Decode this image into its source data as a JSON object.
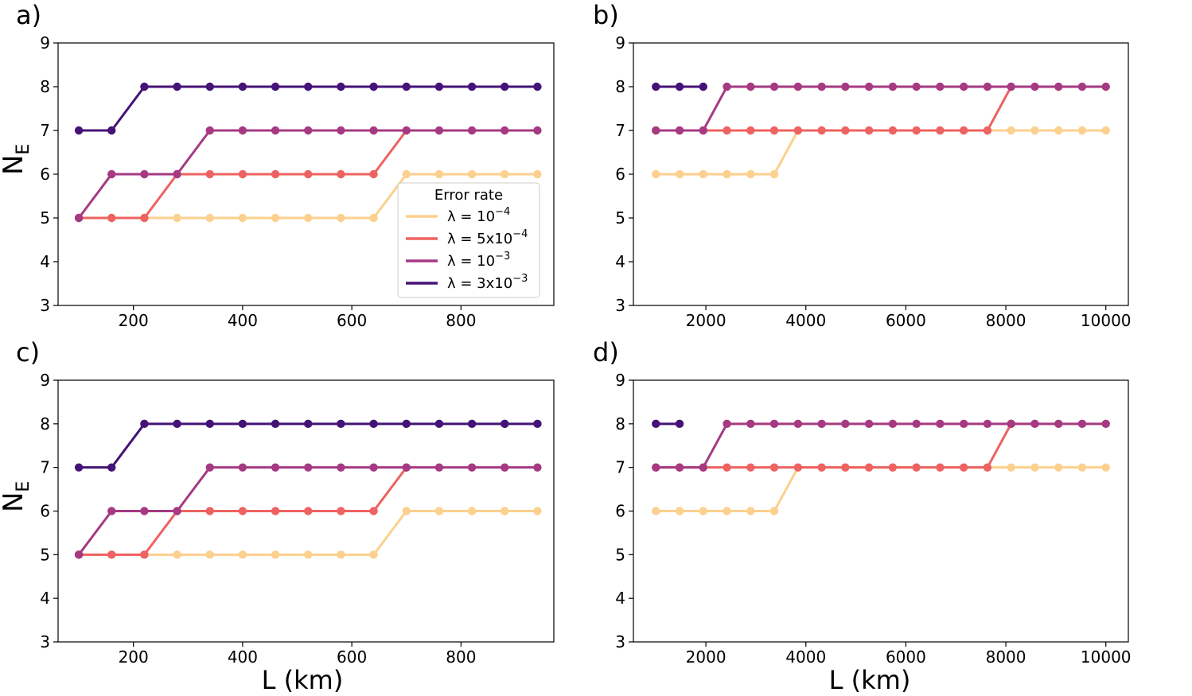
{
  "figure": {
    "ylabel_main": "N",
    "ylabel_sub": "E",
    "xlabel": "L (km)",
    "legend": {
      "title": "Error rate",
      "entries": [
        {
          "prefix": "λ = 10",
          "exp": "−4"
        },
        {
          "prefix": "λ = 5x10",
          "exp": "−4"
        },
        {
          "prefix": "λ = 10",
          "exp": "−3"
        },
        {
          "prefix": "λ = 3x10",
          "exp": "−3"
        }
      ]
    }
  },
  "colors": {
    "l1e4": "#fcd08e",
    "l5e4": "#ee6261",
    "l1e3": "#a63a82",
    "l3e3": "#451377"
  },
  "chart_data": [
    {
      "label": "a)",
      "type": "line",
      "xlim": [
        62,
        970
      ],
      "ylim": [
        3,
        9
      ],
      "xticks": [
        200,
        400,
        600,
        800
      ],
      "yticks": [
        3,
        4,
        5,
        6,
        7,
        8,
        9
      ],
      "series": [
        {
          "name": "λ = 10^-4",
          "color": "#fcd08e",
          "x": [
            100,
            160,
            220,
            280,
            340,
            400,
            460,
            520,
            580,
            640,
            700,
            760,
            820,
            880,
            940
          ],
          "y": [
            5,
            5,
            5,
            5,
            5,
            5,
            5,
            5,
            5,
            5,
            6,
            6,
            6,
            6,
            6
          ]
        },
        {
          "name": "λ = 5x10^-4",
          "color": "#ee6261",
          "x": [
            100,
            160,
            220,
            280,
            340,
            400,
            460,
            520,
            580,
            640,
            700
          ],
          "y": [
            5,
            5,
            5,
            6,
            6,
            6,
            6,
            6,
            6,
            6,
            7
          ]
        },
        {
          "name": "λ = 10^-3",
          "color": "#a63a82",
          "x": [
            100,
            160,
            220,
            280,
            340,
            400,
            460,
            520,
            580,
            640,
            700,
            760,
            820,
            880,
            940
          ],
          "y": [
            5,
            6,
            6,
            6,
            7,
            7,
            7,
            7,
            7,
            7,
            7,
            7,
            7,
            7,
            7
          ]
        },
        {
          "name": "λ = 3x10^-3",
          "color": "#451377",
          "x": [
            100,
            160,
            220,
            280,
            340,
            400,
            460,
            520,
            580,
            640,
            700,
            760,
            820,
            880,
            940
          ],
          "y": [
            7,
            7,
            8,
            8,
            8,
            8,
            8,
            8,
            8,
            8,
            8,
            8,
            8,
            8,
            8
          ]
        }
      ]
    },
    {
      "label": "b)",
      "type": "line",
      "xlim": [
        550,
        10450
      ],
      "ylim": [
        3,
        9
      ],
      "xticks": [
        2000,
        4000,
        6000,
        8000,
        10000
      ],
      "yticks": [
        3,
        4,
        5,
        6,
        7,
        8,
        9
      ],
      "series": [
        {
          "name": "λ = 10^-4",
          "color": "#fcd08e",
          "x": [
            1000,
            1474,
            1947,
            2421,
            2895,
            3368,
            3842,
            4316,
            4789,
            5263,
            5737,
            6211,
            6684,
            7158,
            7632,
            8105,
            8579,
            9053,
            9526,
            10000
          ],
          "y": [
            6,
            6,
            6,
            6,
            6,
            6,
            7,
            7,
            7,
            7,
            7,
            7,
            7,
            7,
            7,
            7,
            7,
            7,
            7,
            7
          ]
        },
        {
          "name": "λ = 5x10^-4",
          "color": "#ee6261",
          "x": [
            1000,
            1474,
            1947,
            2421,
            2895,
            3368,
            3842,
            4316,
            4789,
            5263,
            5737,
            6211,
            6684,
            7158,
            7632,
            8105
          ],
          "y": [
            7,
            7,
            7,
            7,
            7,
            7,
            7,
            7,
            7,
            7,
            7,
            7,
            7,
            7,
            7,
            8
          ]
        },
        {
          "name": "λ = 10^-3",
          "color": "#a63a82",
          "x": [
            1000,
            1474,
            1947,
            2421,
            2895,
            3368,
            3842,
            4316,
            4789,
            5263,
            5737,
            6211,
            6684,
            7158,
            7632,
            8105,
            8579,
            9053,
            9526,
            10000
          ],
          "y": [
            7,
            7,
            7,
            8,
            8,
            8,
            8,
            8,
            8,
            8,
            8,
            8,
            8,
            8,
            8,
            8,
            8,
            8,
            8,
            8
          ]
        },
        {
          "name": "λ = 3x10^-3",
          "color": "#451377",
          "x": [
            1000,
            1474,
            1947
          ],
          "y": [
            8,
            8,
            8
          ]
        }
      ]
    },
    {
      "label": "c)",
      "type": "line",
      "xlim": [
        62,
        970
      ],
      "ylim": [
        3,
        9
      ],
      "xticks": [
        200,
        400,
        600,
        800
      ],
      "yticks": [
        3,
        4,
        5,
        6,
        7,
        8,
        9
      ],
      "series": [
        {
          "name": "λ = 10^-4",
          "color": "#fcd08e",
          "x": [
            100,
            160,
            220,
            280,
            340,
            400,
            460,
            520,
            580,
            640,
            700,
            760,
            820,
            880,
            940
          ],
          "y": [
            5,
            5,
            5,
            5,
            5,
            5,
            5,
            5,
            5,
            5,
            6,
            6,
            6,
            6,
            6
          ]
        },
        {
          "name": "λ = 5x10^-4",
          "color": "#ee6261",
          "x": [
            100,
            160,
            220,
            280,
            340,
            400,
            460,
            520,
            580,
            640,
            700
          ],
          "y": [
            5,
            5,
            5,
            6,
            6,
            6,
            6,
            6,
            6,
            6,
            7
          ]
        },
        {
          "name": "λ = 10^-3",
          "color": "#a63a82",
          "x": [
            100,
            160,
            220,
            280,
            340,
            400,
            460,
            520,
            580,
            640,
            700,
            760,
            820,
            880,
            940
          ],
          "y": [
            5,
            6,
            6,
            6,
            7,
            7,
            7,
            7,
            7,
            7,
            7,
            7,
            7,
            7,
            7
          ]
        },
        {
          "name": "λ = 3x10^-3",
          "color": "#451377",
          "x": [
            100,
            160,
            220,
            280,
            340,
            400,
            460,
            520,
            580,
            640,
            700,
            760,
            820,
            880,
            940
          ],
          "y": [
            7,
            7,
            8,
            8,
            8,
            8,
            8,
            8,
            8,
            8,
            8,
            8,
            8,
            8,
            8
          ]
        }
      ]
    },
    {
      "label": "d)",
      "type": "line",
      "xlim": [
        550,
        10450
      ],
      "ylim": [
        3,
        9
      ],
      "xticks": [
        2000,
        4000,
        6000,
        8000,
        10000
      ],
      "yticks": [
        3,
        4,
        5,
        6,
        7,
        8,
        9
      ],
      "series": [
        {
          "name": "λ = 10^-4",
          "color": "#fcd08e",
          "x": [
            1000,
            1474,
            1947,
            2421,
            2895,
            3368,
            3842,
            4316,
            4789,
            5263,
            5737,
            6211,
            6684,
            7158,
            7632,
            8105,
            8579,
            9053,
            9526,
            10000
          ],
          "y": [
            6,
            6,
            6,
            6,
            6,
            6,
            7,
            7,
            7,
            7,
            7,
            7,
            7,
            7,
            7,
            7,
            7,
            7,
            7,
            7
          ]
        },
        {
          "name": "λ = 5x10^-4",
          "color": "#ee6261",
          "x": [
            1000,
            1474,
            1947,
            2421,
            2895,
            3368,
            3842,
            4316,
            4789,
            5263,
            5737,
            6211,
            6684,
            7158,
            7632,
            8105
          ],
          "y": [
            7,
            7,
            7,
            7,
            7,
            7,
            7,
            7,
            7,
            7,
            7,
            7,
            7,
            7,
            7,
            8
          ]
        },
        {
          "name": "λ = 10^-3",
          "color": "#a63a82",
          "x": [
            1000,
            1474,
            1947,
            2421,
            2895,
            3368,
            3842,
            4316,
            4789,
            5263,
            5737,
            6211,
            6684,
            7158,
            7632,
            8105,
            8579,
            9053,
            9526,
            10000
          ],
          "y": [
            7,
            7,
            7,
            8,
            8,
            8,
            8,
            8,
            8,
            8,
            8,
            8,
            8,
            8,
            8,
            8,
            8,
            8,
            8,
            8
          ]
        },
        {
          "name": "λ = 3x10^-3",
          "color": "#451377",
          "x": [
            1000,
            1474
          ],
          "y": [
            8,
            8
          ]
        }
      ]
    }
  ]
}
